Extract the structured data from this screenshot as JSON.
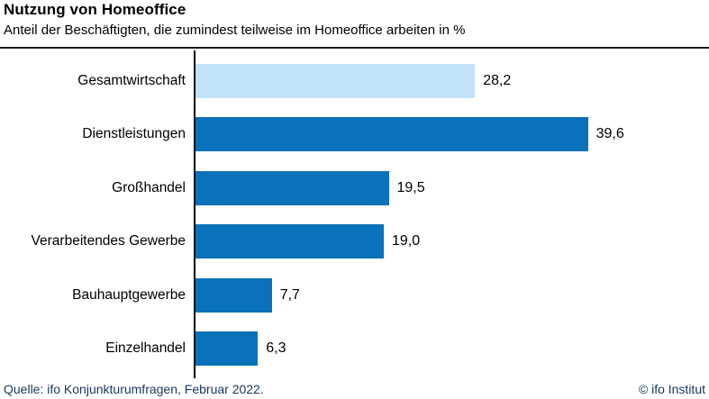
{
  "header": {
    "title": "Nutzung von Homeoffice",
    "subtitle": "Anteil der Beschäftigten, die zumindest teilweise im Homeoffice arbeiten in %"
  },
  "chart_data": {
    "type": "bar",
    "orientation": "horizontal",
    "title": "Nutzung von Homeoffice",
    "subtitle": "Anteil der Beschäftigten, die zumindest teilweise im Homeoffice arbeiten in %",
    "categories": [
      "Gesamtwirtschaft",
      "Dienstleistungen",
      "Großhandel",
      "Verarbeitendes Gewerbe",
      "Bauhauptgewerbe",
      "Einzelhandel"
    ],
    "values": [
      28.2,
      39.6,
      19.5,
      19.0,
      7.7,
      6.3
    ],
    "value_labels": [
      "28,2",
      "39,6",
      "19,5",
      "19,0",
      "7,7",
      "6,3"
    ],
    "unit": "%",
    "xlim": [
      0,
      52
    ],
    "grid": false,
    "legend": false,
    "highlighted_index": 0,
    "colors": {
      "bar": "#0a72ba",
      "highlight": "#c3e3fa",
      "axis": "#000000",
      "rule": "#1a1a1a",
      "footer_text": "#17365d"
    }
  },
  "footer": {
    "source": "Quelle: ifo Konjunkturumfragen, Februar 2022.",
    "copyright": "© ifo Institut"
  }
}
